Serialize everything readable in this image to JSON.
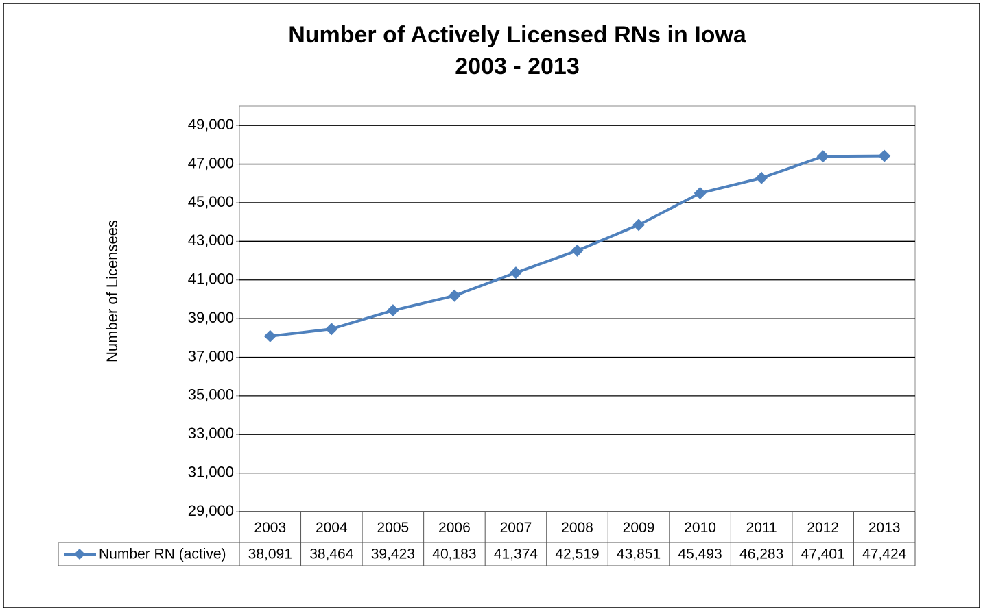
{
  "chart_data": {
    "type": "line",
    "title": "Number of Actively Licensed RNs in Iowa",
    "subtitle": "2003 - 2013",
    "y_label": "Number of Licensees",
    "categories": [
      "2003",
      "2004",
      "2005",
      "2006",
      "2007",
      "2008",
      "2009",
      "2010",
      "2011",
      "2012",
      "2013"
    ],
    "series": [
      {
        "name": "Number RN (active)",
        "color": "#4f81bd",
        "values": [
          38091,
          38464,
          39423,
          40183,
          41374,
          42519,
          43851,
          45493,
          46283,
          47401,
          47424
        ],
        "value_labels": [
          "38,091",
          "38,464",
          "39,423",
          "40,183",
          "41,374",
          "42,519",
          "43,851",
          "45,493",
          "46,283",
          "47,401",
          "47,424"
        ]
      }
    ],
    "ylim": [
      29000,
      50000
    ],
    "yticks": [
      {
        "value": 29000,
        "label": "29,000"
      },
      {
        "value": 31000,
        "label": "31,000"
      },
      {
        "value": 33000,
        "label": "33,000"
      },
      {
        "value": 35000,
        "label": "35,000"
      },
      {
        "value": 37000,
        "label": "37,000"
      },
      {
        "value": 39000,
        "label": "39,000"
      },
      {
        "value": 41000,
        "label": "41,000"
      },
      {
        "value": 43000,
        "label": "43,000"
      },
      {
        "value": 45000,
        "label": "45,000"
      },
      {
        "value": 47000,
        "label": "47,000"
      },
      {
        "value": 49000,
        "label": "49,000"
      }
    ],
    "grid": true
  }
}
